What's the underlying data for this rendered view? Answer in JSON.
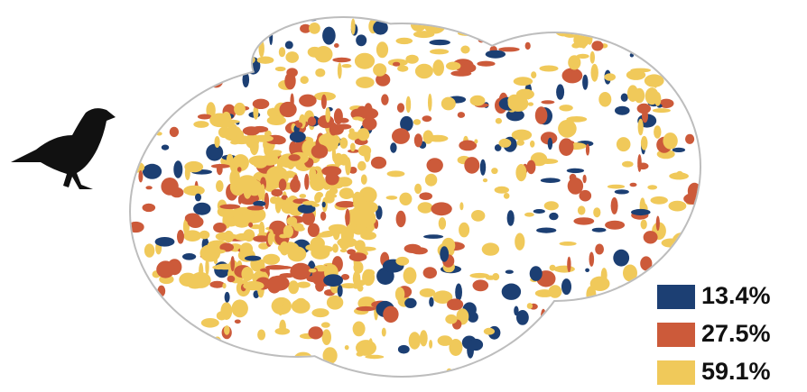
{
  "legend": {
    "items": [
      {
        "color": "#1c3f73",
        "label": "13.4%"
      },
      {
        "color": "#cc5a3a",
        "label": "27.5%"
      },
      {
        "color": "#f0c95a",
        "label": "59.1%"
      }
    ]
  }
}
